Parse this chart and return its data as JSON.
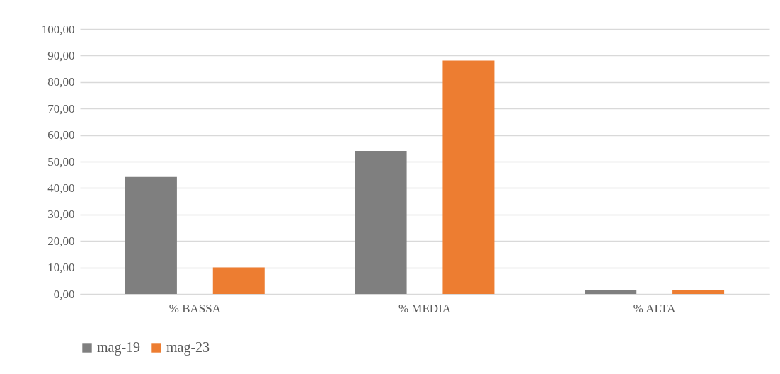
{
  "chart_data": {
    "type": "bar",
    "categories": [
      "% BASSA",
      "% MEDIA",
      "% ALTA"
    ],
    "series": [
      {
        "name": "mag-19",
        "color": "#7f7f7f",
        "values": [
          44.2,
          54.0,
          1.4
        ]
      },
      {
        "name": "mag-23",
        "color": "#ed7d31",
        "values": [
          10.0,
          88.1,
          1.4
        ]
      }
    ],
    "ylim": [
      0,
      100
    ],
    "yticks": [
      {
        "value": 0,
        "label": "0,00"
      },
      {
        "value": 10,
        "label": "10,00"
      },
      {
        "value": 20,
        "label": "20,00"
      },
      {
        "value": 30,
        "label": "30,00"
      },
      {
        "value": 40,
        "label": "40,00"
      },
      {
        "value": 50,
        "label": "50,00"
      },
      {
        "value": 60,
        "label": "60,00"
      },
      {
        "value": 70,
        "label": "70,00"
      },
      {
        "value": 80,
        "label": "80,00"
      },
      {
        "value": 90,
        "label": "90,00"
      },
      {
        "value": 100,
        "label": "100,00"
      }
    ],
    "grid": "y",
    "legend": "bottom"
  }
}
